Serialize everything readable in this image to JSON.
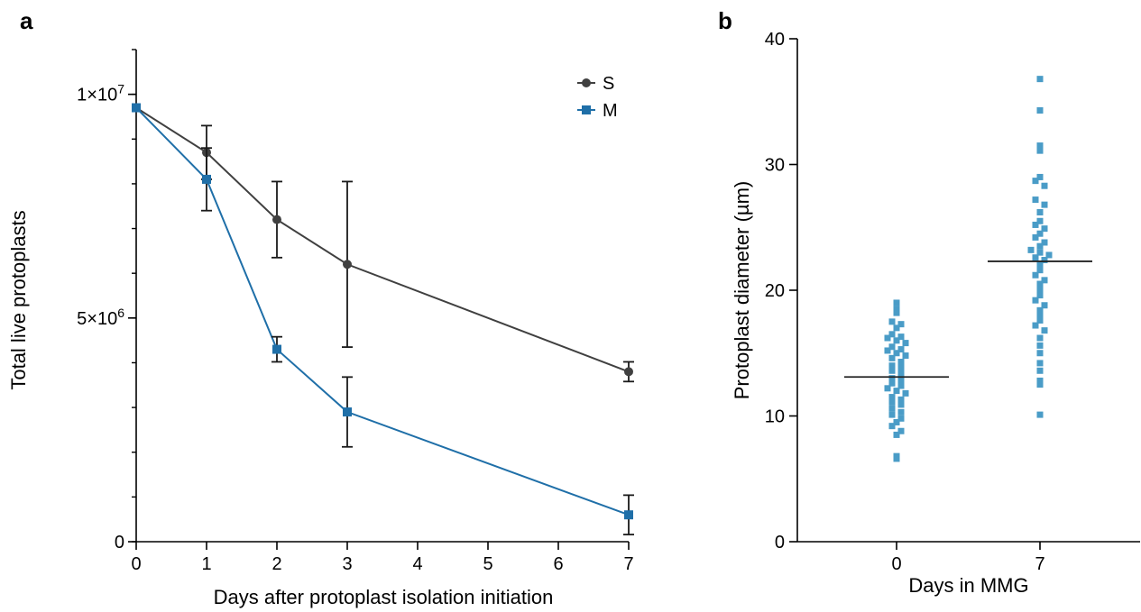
{
  "chart_data": [
    {
      "panel": "a",
      "type": "line",
      "xlabel": "Days after protoplast isolation initiation",
      "ylabel": "Total live protoplasts",
      "x_ticks": [
        0,
        1,
        2,
        3,
        4,
        5,
        6,
        7
      ],
      "y_ticks": [
        {
          "value": 0,
          "label": "0"
        },
        {
          "value": 5000000,
          "label": "5×10^6"
        },
        {
          "value": 10000000,
          "label": "1×10^7"
        }
      ],
      "xlim": [
        0,
        7
      ],
      "ylim": [
        0,
        11000000
      ],
      "legend_position": "top-right",
      "series": [
        {
          "name": "S",
          "marker": "circle",
          "color": "#404040",
          "x": [
            0,
            1,
            2,
            3,
            7
          ],
          "y": [
            9700000,
            8700000,
            7200000,
            6200000,
            3800000
          ],
          "error": [
            0,
            600000,
            850000,
            1850000,
            220000
          ]
        },
        {
          "name": "M",
          "marker": "square",
          "color": "#1f6fa8",
          "x": [
            0,
            1,
            2,
            3,
            7
          ],
          "y": [
            9700000,
            8100000,
            4300000,
            2900000,
            600000
          ],
          "error": [
            0,
            700000,
            280000,
            780000,
            440000
          ]
        }
      ]
    },
    {
      "panel": "b",
      "type": "scatter",
      "xlabel": "Days in MMG",
      "ylabel": "Protoplast diameter (µm)",
      "categories": [
        "0",
        "7"
      ],
      "y_ticks": [
        0,
        10,
        20,
        30,
        40
      ],
      "ylim": [
        0,
        40
      ],
      "grid": false,
      "color": "#4a9cc7",
      "groups": [
        {
          "category": "0",
          "mean": 13.1,
          "values": [
            19.0,
            18.5,
            18.2,
            17.5,
            17.3,
            17.0,
            16.5,
            16.3,
            16.2,
            16.0,
            15.8,
            15.5,
            15.3,
            15.2,
            15.0,
            14.8,
            14.6,
            14.3,
            14.0,
            13.8,
            13.6,
            13.3,
            13.0,
            12.8,
            12.6,
            12.4,
            12.2,
            12.0,
            11.8,
            11.5,
            11.3,
            11.1,
            10.9,
            10.6,
            10.3,
            10.1,
            9.8,
            9.5,
            9.2,
            8.8,
            8.5,
            6.8,
            6.6
          ]
        },
        {
          "category": "7",
          "mean": 22.3,
          "values": [
            36.8,
            34.3,
            31.5,
            31.1,
            29.0,
            28.7,
            28.3,
            27.2,
            26.8,
            26.2,
            25.5,
            25.2,
            24.9,
            24.5,
            24.2,
            23.8,
            23.5,
            23.2,
            23.0,
            22.8,
            22.6,
            22.4,
            22.0,
            21.6,
            21.2,
            20.8,
            20.5,
            20.0,
            19.6,
            19.2,
            18.8,
            18.4,
            18.0,
            17.6,
            17.2,
            16.8,
            16.2,
            15.6,
            15.0,
            14.2,
            13.6,
            12.8,
            12.5,
            10.1
          ]
        }
      ]
    }
  ]
}
